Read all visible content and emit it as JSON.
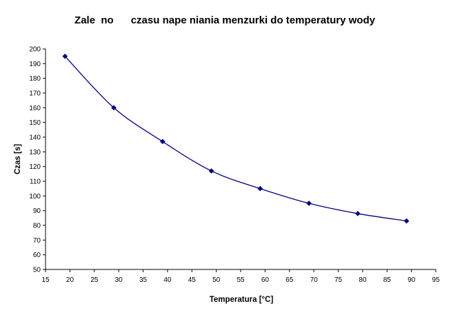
{
  "chart_data": {
    "type": "line",
    "title": "Zale  no      czasu nape niania menzurki do temperatury wody",
    "xlabel": "Temperatura [°C]",
    "ylabel": "Czas [s]",
    "xlim": [
      15,
      95
    ],
    "ylim": [
      50,
      200
    ],
    "xticks": [
      "15",
      "20",
      "25",
      "30",
      "35",
      "40",
      "45",
      "50",
      "55",
      "60",
      "65",
      "70",
      "75",
      "80",
      "85",
      "90",
      "95"
    ],
    "yticks": [
      "50",
      "60",
      "70",
      "80",
      "90",
      "100",
      "110",
      "120",
      "130",
      "140",
      "150",
      "160",
      "170",
      "180",
      "190",
      "200"
    ],
    "grid": false,
    "smoothed": true,
    "series_color": "#000080",
    "series": [
      {
        "x": [
          19,
          29,
          39,
          49,
          59,
          69,
          79,
          89
        ],
        "values": [
          195,
          160,
          137,
          117,
          105,
          95,
          88,
          83
        ]
      }
    ]
  }
}
